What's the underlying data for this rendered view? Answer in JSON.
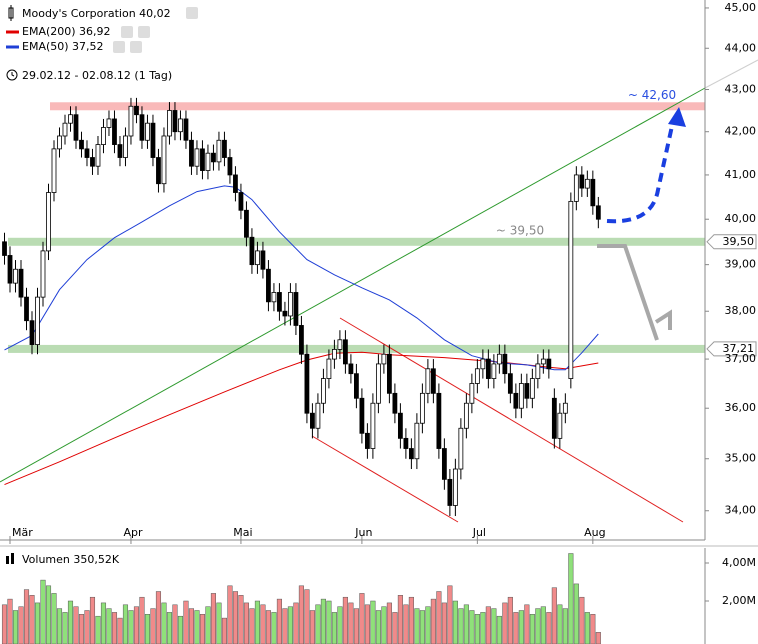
{
  "chart_data": {
    "type": "candlestick",
    "title": "Moody's Corporation 40,02",
    "subtitle": "29.02.12 - 02.08.12 (1 Tag)",
    "log_y": true,
    "xlim": [
      -0.82,
      127.4
    ],
    "ylim": [
      33.45,
      45.2
    ],
    "yticks": [
      {
        "value": 45,
        "label": "45,00"
      },
      {
        "value": 44,
        "label": "44,00"
      },
      {
        "value": 43,
        "label": "43,00"
      },
      {
        "value": 42,
        "label": "42,00"
      },
      {
        "value": 41,
        "label": "41,00"
      },
      {
        "value": 40,
        "label": "40,00"
      },
      {
        "value": 39,
        "label": "39,00"
      },
      {
        "value": 38,
        "label": "38,00"
      },
      {
        "value": 37,
        "label": "37,00"
      },
      {
        "value": 36,
        "label": "36,00"
      },
      {
        "value": 35,
        "label": "35,00"
      },
      {
        "value": 34,
        "label": "34,00"
      }
    ],
    "xticks": [
      {
        "value": 1,
        "label": "Mär"
      },
      {
        "value": 23,
        "label": "Apr"
      },
      {
        "value": 43,
        "label": "Mai"
      },
      {
        "value": 65,
        "label": "Jun"
      },
      {
        "value": 86,
        "label": "Jul"
      },
      {
        "value": 107,
        "label": "Aug"
      }
    ],
    "up_color": "#ffffff",
    "down_color": "#000000",
    "open": [
      39.5,
      39.2,
      38.6,
      38.9,
      38.3,
      37.8,
      37.3,
      38.3,
      39.3,
      40.6,
      41.6,
      41.9,
      42.2,
      42.4,
      41.8,
      41.6,
      41.4,
      41.2,
      41.7,
      42.1,
      42.3,
      41.7,
      41.4,
      41.9,
      42.6,
      42.4,
      41.8,
      42.2,
      41.4,
      40.8,
      41.9,
      42.5,
      42.0,
      42.3,
      41.8,
      41.2,
      41.6,
      41.1,
      41.5,
      41.3,
      41.8,
      41.4,
      41.0,
      40.6,
      40.2,
      39.6,
      39.0,
      39.3,
      38.9,
      38.2,
      38.4,
      38.0,
      37.9,
      38.4,
      37.7,
      37.1,
      35.9,
      35.6,
      36.1,
      36.6,
      37.0,
      37.2,
      37.4,
      36.9,
      36.7,
      36.2,
      35.5,
      35.2,
      36.1,
      36.9,
      37.1,
      36.3,
      35.9,
      35.4,
      35.2,
      35.0,
      35.7,
      36.3,
      36.8,
      36.3,
      35.2,
      34.6,
      34.1,
      34.8,
      35.6,
      36.1,
      36.5,
      36.8,
      37.0,
      36.6,
      36.9,
      37.1,
      36.7,
      36.3,
      36.0,
      36.5,
      36.2,
      36.6,
      36.9,
      37.0,
      36.2,
      35.4,
      35.9,
      36.6,
      40.4,
      41.0,
      40.7,
      40.9,
      40.3
    ],
    "high": [
      39.7,
      39.4,
      39.1,
      39.1,
      38.5,
      38.0,
      38.5,
      39.5,
      40.8,
      41.8,
      42.1,
      42.4,
      42.6,
      42.6,
      42.0,
      41.8,
      41.6,
      41.9,
      42.3,
      42.5,
      42.5,
      41.9,
      42.1,
      42.8,
      42.8,
      42.6,
      42.4,
      42.4,
      41.6,
      42.1,
      42.7,
      42.7,
      42.5,
      42.5,
      42.0,
      41.8,
      41.8,
      41.7,
      41.7,
      42.0,
      42.0,
      41.6,
      41.2,
      40.8,
      40.4,
      39.8,
      39.5,
      39.5,
      39.1,
      38.6,
      38.6,
      38.2,
      38.6,
      38.6,
      37.9,
      37.3,
      36.1,
      36.3,
      36.8,
      37.2,
      37.4,
      37.6,
      37.6,
      37.1,
      36.9,
      36.4,
      35.7,
      36.3,
      37.1,
      37.3,
      37.3,
      36.5,
      36.1,
      35.6,
      35.4,
      35.9,
      36.5,
      37.0,
      37.0,
      36.5,
      35.4,
      34.8,
      35.0,
      35.8,
      36.3,
      36.7,
      37.0,
      37.2,
      37.2,
      37.1,
      37.3,
      37.3,
      36.9,
      36.5,
      36.7,
      36.7,
      36.8,
      37.1,
      37.2,
      37.2,
      36.4,
      36.1,
      36.3,
      40.6,
      41.2,
      41.2,
      41.1,
      41.1,
      40.5
    ],
    "low": [
      39.0,
      38.4,
      38.4,
      38.1,
      37.6,
      37.1,
      37.1,
      38.1,
      39.1,
      40.4,
      41.4,
      41.7,
      42.0,
      41.6,
      41.4,
      41.2,
      41.0,
      41.0,
      41.5,
      41.9,
      41.5,
      41.2,
      41.2,
      41.7,
      42.2,
      41.6,
      41.6,
      41.2,
      40.6,
      40.6,
      41.7,
      41.8,
      41.8,
      41.6,
      41.0,
      41.0,
      40.9,
      40.9,
      41.1,
      41.1,
      41.2,
      40.8,
      40.4,
      40.0,
      39.4,
      38.8,
      38.8,
      38.7,
      38.0,
      38.0,
      37.8,
      37.7,
      37.7,
      37.5,
      36.9,
      35.7,
      35.4,
      35.4,
      35.9,
      36.4,
      36.8,
      37.0,
      36.7,
      36.5,
      36.0,
      35.3,
      35.0,
      35.0,
      35.9,
      36.7,
      36.1,
      35.7,
      35.2,
      35.0,
      34.8,
      34.8,
      35.5,
      36.1,
      36.1,
      35.0,
      34.4,
      33.9,
      33.9,
      34.6,
      35.4,
      35.9,
      36.3,
      36.6,
      36.4,
      36.4,
      36.7,
      36.5,
      36.1,
      35.8,
      35.8,
      36.0,
      36.0,
      36.4,
      36.7,
      36.6,
      35.2,
      35.2,
      35.7,
      36.4,
      40.2,
      40.5,
      40.5,
      40.1,
      39.8
    ],
    "close": [
      39.2,
      38.6,
      38.9,
      38.3,
      37.8,
      37.3,
      38.3,
      39.3,
      40.6,
      41.6,
      41.9,
      42.2,
      42.4,
      41.8,
      41.6,
      41.4,
      41.2,
      41.7,
      42.1,
      42.3,
      41.7,
      41.4,
      41.9,
      42.6,
      42.4,
      41.8,
      42.2,
      41.4,
      40.8,
      41.9,
      42.5,
      42.0,
      42.3,
      41.8,
      41.2,
      41.6,
      41.1,
      41.5,
      41.3,
      41.8,
      41.4,
      41.0,
      40.6,
      40.2,
      39.6,
      39.0,
      39.3,
      38.9,
      38.2,
      38.4,
      38.0,
      37.9,
      38.4,
      37.7,
      37.1,
      35.9,
      35.6,
      36.1,
      36.6,
      37.0,
      37.2,
      37.4,
      36.9,
      36.7,
      36.2,
      35.5,
      35.2,
      36.1,
      36.9,
      37.1,
      36.3,
      35.9,
      35.4,
      35.2,
      35.0,
      35.7,
      36.3,
      36.8,
      36.3,
      35.2,
      34.6,
      34.1,
      34.8,
      35.6,
      36.1,
      36.5,
      36.8,
      37.0,
      36.6,
      36.9,
      37.1,
      36.7,
      36.3,
      36.0,
      36.5,
      36.2,
      36.6,
      36.9,
      37.0,
      36.8,
      35.4,
      35.9,
      36.1,
      40.4,
      41.0,
      40.7,
      40.9,
      40.3,
      40.0
    ],
    "series": [
      {
        "name": "EMA(200) 36,92",
        "color": "#e00000",
        "x": [
          0,
          10,
          20,
          30,
          40,
          50,
          55,
          60,
          65,
          70,
          80,
          90,
          100,
          102,
          105,
          108
        ],
        "values": [
          34.5,
          34.94,
          35.41,
          35.87,
          36.33,
          36.78,
          36.98,
          37.12,
          37.14,
          37.09,
          37.03,
          36.94,
          36.82,
          36.8,
          36.86,
          36.92
        ]
      },
      {
        "name": "EMA(50) 37,52",
        "color": "#1f3fd6",
        "x": [
          0,
          5,
          10,
          15,
          20,
          25,
          30,
          35,
          40,
          42,
          45,
          50,
          55,
          60,
          65,
          70,
          75,
          80,
          85,
          90,
          95,
          100,
          102,
          105,
          108
        ],
        "values": [
          37.19,
          37.49,
          38.46,
          39.11,
          39.59,
          39.94,
          40.3,
          40.62,
          40.75,
          40.72,
          40.44,
          39.72,
          39.11,
          38.78,
          38.5,
          38.24,
          37.86,
          37.4,
          37.07,
          36.92,
          36.88,
          36.78,
          36.78,
          37.13,
          37.52
        ]
      }
    ],
    "levels": [
      {
        "value": 42.6,
        "label": "~ 42,60",
        "color": "#f7a8a8",
        "label_color": "#2a4fe0"
      },
      {
        "value": 39.5,
        "label": "~ 39,50",
        "tag": "39,50",
        "color": "#a9d3a0",
        "label_color": "#888888"
      },
      {
        "value": 37.21,
        "tag": "37,21",
        "color": "#a9d3a0"
      }
    ],
    "volume": {
      "title": "Volumen 350,52K",
      "ylim": [
        0,
        4790000
      ],
      "yticks": [
        {
          "value": 4000000,
          "label": "4,00M"
        },
        {
          "value": 2000000,
          "label": "2,00M"
        }
      ],
      "up_color": "#8fe07a",
      "down_color": "#f08a8a",
      "values": [
        1800000,
        2100000,
        1500000,
        1700000,
        2600000,
        2300000,
        1900000,
        3100000,
        2800000,
        2400000,
        1600000,
        1400000,
        2000000,
        1700000,
        1300000,
        1500000,
        2200000,
        1200000,
        1900000,
        1600000,
        1400000,
        1100000,
        1800000,
        1500000,
        1700000,
        2200000,
        1300000,
        1600000,
        2500000,
        1900000,
        1400000,
        1800000,
        1200000,
        2000000,
        1600000,
        1500000,
        1300000,
        1700000,
        2400000,
        1900000,
        1100000,
        2800000,
        2500000,
        2300000,
        1900000,
        1600000,
        2000000,
        1800000,
        1500000,
        1400000,
        2100000,
        1600000,
        1700000,
        1900000,
        2800000,
        2600000,
        1500000,
        1800000,
        2100000,
        2000000,
        1400000,
        1700000,
        2200000,
        1900000,
        1600000,
        2400000,
        1800000,
        2000000,
        1500000,
        1700000,
        1900000,
        1400000,
        2300000,
        1800000,
        2200000,
        1600000,
        1500000,
        1700000,
        2100000,
        2500000,
        1900000,
        2800000,
        2000000,
        1600000,
        1800000,
        1500000,
        1300000,
        1400000,
        1700000,
        1600000,
        1200000,
        1900000,
        2200000,
        1400000,
        1500000,
        1800000,
        1300000,
        1600000,
        1700000,
        1400000,
        2700000,
        1800000,
        1600000,
        4500000,
        2900000,
        2200000,
        1400000,
        1300000,
        350520
      ]
    }
  }
}
